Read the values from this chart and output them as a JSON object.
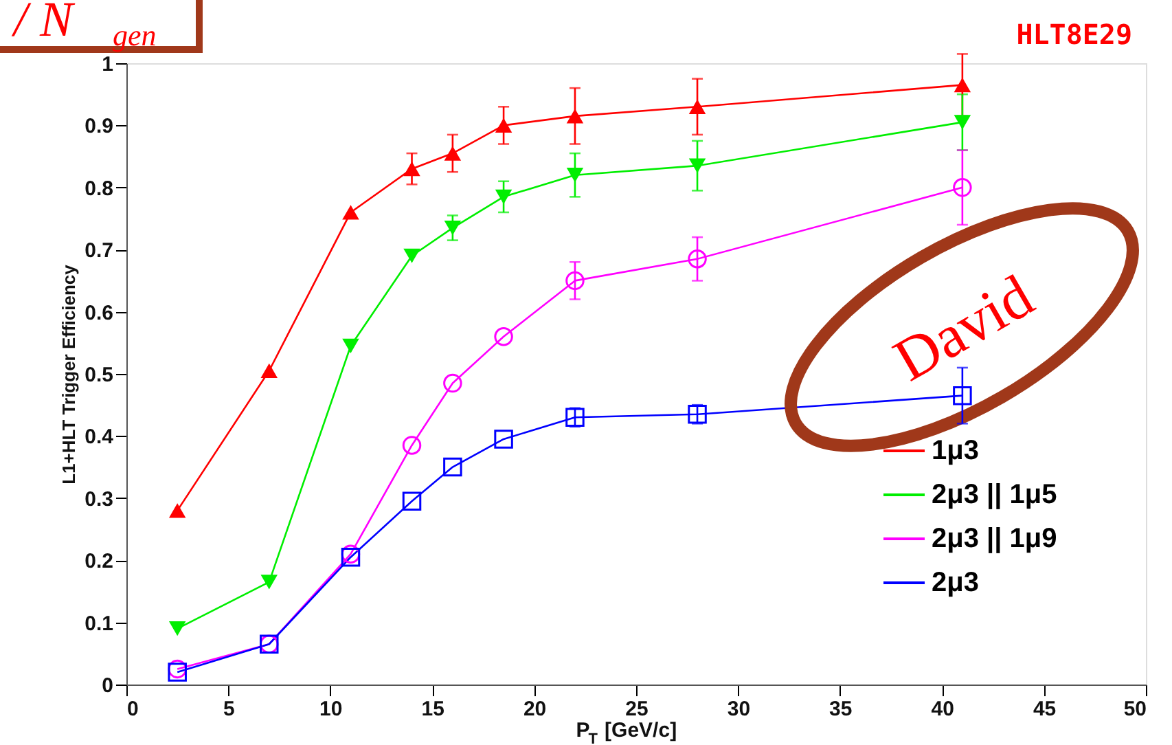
{
  "chart_data": {
    "type": "line",
    "title": "HLT8E29",
    "xlabel": "P$_{T}$ [GeV/c]",
    "ylabel": "L1+HLT Trigger Efficiency",
    "annotations": [
      "/ N$_{gen}$",
      "David"
    ],
    "xlim": [
      0,
      50
    ],
    "xticks": [
      0,
      5,
      10,
      15,
      20,
      25,
      30,
      35,
      40,
      45,
      50
    ],
    "ylim": [
      0,
      1
    ],
    "yticks": [
      {
        "value": 0,
        "label": "0"
      },
      0.1,
      0.2,
      0.3,
      0.4,
      0.5,
      0.6,
      0.7,
      0.8,
      0.9,
      {
        "value": 1,
        "label": "1"
      }
    ],
    "grid": false,
    "legend": "bottom right",
    "x": [
      2.5,
      7,
      11,
      14,
      16,
      18.5,
      22,
      28,
      41
    ],
    "series": [
      {
        "name": "1μ3",
        "color": "#ff0000",
        "marker": "triangle-up",
        "values": [
          0.28,
          0.505,
          0.76,
          0.83,
          0.855,
          0.9,
          0.915,
          0.93,
          0.965
        ],
        "errors": [
          null,
          null,
          null,
          0.025,
          0.03,
          0.03,
          0.045,
          0.045,
          0.05
        ]
      },
      {
        "name": "2μ3 || 1μ5",
        "color": "#00ee00",
        "marker": "triangle-down",
        "values": [
          0.09,
          0.165,
          0.545,
          0.69,
          0.735,
          0.785,
          0.82,
          0.835,
          0.905
        ],
        "errors": [
          null,
          null,
          null,
          null,
          0.02,
          0.025,
          0.035,
          0.04,
          0.045
        ]
      },
      {
        "name": "2μ3 || 1μ9",
        "color": "#ff00ff",
        "marker": "circle",
        "values": [
          0.025,
          0.065,
          0.21,
          0.385,
          0.485,
          0.56,
          0.65,
          0.685,
          0.8
        ],
        "errors": [
          null,
          null,
          null,
          null,
          null,
          null,
          0.03,
          0.035,
          0.06
        ]
      },
      {
        "name": "2μ3",
        "color": "#0000ff",
        "marker": "square",
        "values": [
          0.02,
          0.065,
          0.205,
          0.295,
          0.35,
          0.395,
          0.43,
          0.435,
          0.465
        ],
        "errors": [
          null,
          null,
          null,
          null,
          null,
          null,
          0.015,
          0.015,
          0.045
        ]
      }
    ]
  }
}
